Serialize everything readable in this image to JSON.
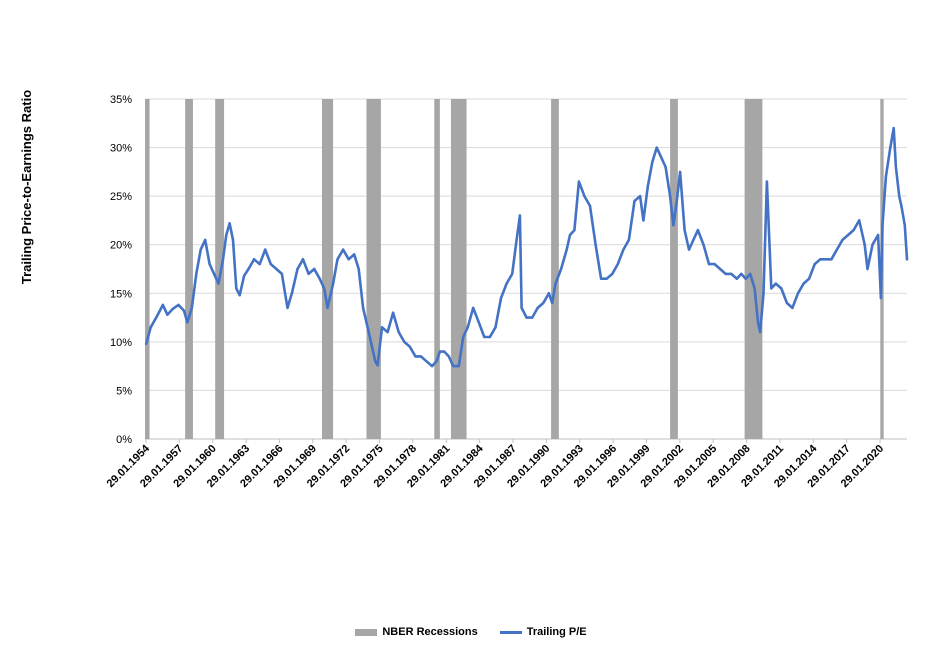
{
  "chart_data": {
    "type": "line",
    "title": "",
    "xlabel": "",
    "ylabel": "Trailing Price-to-Earnings Ratio",
    "ylim": [
      0,
      35
    ],
    "yticks": [
      "0%",
      "5%",
      "10%",
      "15%",
      "20%",
      "25%",
      "30%",
      "35%"
    ],
    "xlim": [
      1954.08,
      2022.5
    ],
    "xticks": [
      "29.01.1954",
      "29.01.1957",
      "29.01.1960",
      "29.01.1963",
      "29.01.1966",
      "29.01.1969",
      "29.01.1972",
      "29.01.1975",
      "29.01.1978",
      "29.01.1981",
      "29.01.1984",
      "29.01.1987",
      "29.01.1990",
      "29.01.1993",
      "29.01.1996",
      "29.01.1999",
      "29.01.2002",
      "29.01.2005",
      "29.01.2008",
      "29.01.2011",
      "29.01.2014",
      "29.01.2017",
      "29.01.2020"
    ],
    "grid": true,
    "legend_position": "bottom",
    "series": [
      {
        "name": "NBER Recessions",
        "kind": "bands",
        "color": "#a6a6a6",
        "periods": [
          [
            1953.6,
            1954.4
          ],
          [
            1957.6,
            1958.3
          ],
          [
            1960.3,
            1961.1
          ],
          [
            1969.9,
            1970.9
          ],
          [
            1973.9,
            1975.2
          ],
          [
            1980.0,
            1980.5
          ],
          [
            1981.5,
            1982.9
          ],
          [
            1990.5,
            1991.2
          ],
          [
            2001.2,
            2001.9
          ],
          [
            2007.9,
            2009.5
          ],
          [
            2020.1,
            2020.4
          ]
        ]
      },
      {
        "name": "Trailing P/E",
        "kind": "line",
        "color": "#4472c4",
        "x": [
          1954.1,
          1954.5,
          1955.0,
          1955.6,
          1956.0,
          1956.5,
          1957.0,
          1957.5,
          1957.8,
          1958.2,
          1958.6,
          1959.0,
          1959.4,
          1959.8,
          1960.2,
          1960.6,
          1961.0,
          1961.3,
          1961.6,
          1961.9,
          1962.2,
          1962.5,
          1962.9,
          1963.3,
          1963.8,
          1964.3,
          1964.8,
          1965.3,
          1965.8,
          1966.3,
          1966.8,
          1967.2,
          1967.7,
          1968.2,
          1968.7,
          1969.2,
          1969.7,
          1970.1,
          1970.4,
          1970.9,
          1971.3,
          1971.8,
          1972.3,
          1972.8,
          1973.2,
          1973.6,
          1974.0,
          1974.4,
          1974.7,
          1974.9,
          1975.3,
          1975.8,
          1976.3,
          1976.8,
          1977.3,
          1977.8,
          1978.3,
          1978.8,
          1979.3,
          1979.8,
          1980.2,
          1980.5,
          1980.9,
          1981.3,
          1981.7,
          1982.2,
          1982.6,
          1983.0,
          1983.5,
          1984.0,
          1984.5,
          1985.0,
          1985.5,
          1986.0,
          1986.5,
          1987.0,
          1987.4,
          1987.7,
          1987.85,
          1988.3,
          1988.8,
          1989.3,
          1989.8,
          1990.3,
          1990.6,
          1990.9,
          1991.4,
          1991.9,
          1992.2,
          1992.6,
          1993.0,
          1993.5,
          1994.0,
          1994.5,
          1995.0,
          1995.5,
          1996.0,
          1996.5,
          1997.0,
          1997.5,
          1998.0,
          1998.5,
          1998.8,
          1999.2,
          1999.6,
          2000.0,
          2000.4,
          2000.8,
          2001.2,
          2001.5,
          2001.8,
          2002.1,
          2002.5,
          2002.9,
          2003.3,
          2003.7,
          2004.2,
          2004.7,
          2005.2,
          2005.7,
          2006.2,
          2006.7,
          2007.2,
          2007.6,
          2008.0,
          2008.4,
          2008.8,
          2009.1,
          2009.3,
          2009.6,
          2009.9,
          2010.3,
          2010.7,
          2011.2,
          2011.7,
          2012.2,
          2012.7,
          2013.2,
          2013.7,
          2014.2,
          2014.7,
          2015.2,
          2015.7,
          2016.2,
          2016.7,
          2017.2,
          2017.7,
          2018.2,
          2018.7,
          2018.95,
          2019.4,
          2019.9,
          2020.15,
          2020.3,
          2020.6,
          2021.0,
          2021.3,
          2021.5,
          2021.8,
          2022.0,
          2022.3,
          2022.5
        ],
        "y": [
          9.8,
          11.5,
          12.5,
          13.8,
          12.8,
          13.4,
          13.8,
          13.2,
          12.0,
          13.5,
          17.0,
          19.5,
          20.5,
          18.0,
          17.0,
          16.0,
          18.5,
          21.0,
          22.2,
          20.5,
          15.5,
          14.8,
          16.8,
          17.5,
          18.5,
          18.0,
          19.5,
          18.0,
          17.5,
          17.0,
          13.5,
          15.0,
          17.5,
          18.5,
          17.0,
          17.5,
          16.5,
          15.5,
          13.5,
          16.0,
          18.5,
          19.5,
          18.5,
          19.0,
          17.5,
          13.5,
          11.5,
          9.5,
          8.0,
          7.6,
          11.5,
          11.0,
          13.0,
          11.0,
          10.0,
          9.5,
          8.5,
          8.5,
          8.0,
          7.5,
          8.0,
          9.0,
          9.0,
          8.5,
          7.5,
          7.5,
          10.5,
          11.5,
          13.5,
          12.0,
          10.5,
          10.5,
          11.5,
          14.5,
          16.0,
          17.0,
          20.5,
          23.0,
          13.5,
          12.5,
          12.5,
          13.5,
          14.0,
          15.0,
          14.0,
          16.0,
          17.5,
          19.5,
          21.0,
          21.5,
          26.5,
          25.0,
          24.0,
          20.0,
          16.5,
          16.5,
          17.0,
          18.0,
          19.5,
          20.5,
          24.5,
          25.0,
          22.5,
          26.0,
          28.5,
          30.0,
          29.0,
          28.0,
          25.0,
          22.0,
          24.5,
          27.5,
          21.5,
          19.5,
          20.5,
          21.5,
          20.0,
          18.0,
          18.0,
          17.5,
          17.0,
          17.0,
          16.5,
          17.0,
          16.5,
          17.0,
          15.5,
          12.0,
          11.0,
          15.0,
          26.5,
          15.5,
          16.0,
          15.5,
          14.0,
          13.5,
          15.0,
          16.0,
          16.5,
          18.0,
          18.5,
          18.5,
          18.5,
          19.5,
          20.5,
          21.0,
          21.5,
          22.5,
          20.0,
          17.5,
          20.0,
          21.0,
          14.5,
          22.0,
          27.0,
          30.0,
          32.0,
          28.0,
          25.0,
          24.0,
          22.0,
          18.5
        ]
      }
    ]
  }
}
